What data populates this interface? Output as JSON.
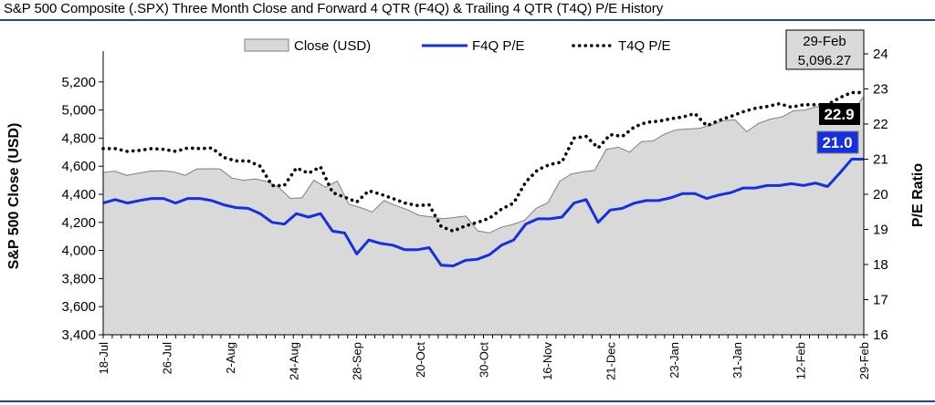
{
  "title": "S&P 500 Composite (.SPX) Three Month Close and Forward 4 QTR (F4Q) & Trailing 4 QTR (T4Q) P/E History",
  "colors": {
    "rule": "#1f3fbf",
    "area_fill": "#d9d9d9",
    "area_stroke": "#7f7f7f",
    "f4q": "#1530e0",
    "t4q": "#000000",
    "callout_close_bg": "#d9d9d9",
    "callout_t4q_bg": "#000000",
    "callout_f4q_bg": "#1530e0"
  },
  "chart_data": {
    "type": "area",
    "title": "S&P 500 Composite (.SPX) Three Month Close and Forward 4 QTR (F4Q) & Trailing 4 QTR (T4Q) P/E History",
    "xlabel": "",
    "ylabel_left": "S&P 500 Close (USD)",
    "ylabel_right": "P/E Ratio",
    "ylim_left": [
      3400,
      5400
    ],
    "ylim_right": [
      16,
      24
    ],
    "yticks_left": [
      "3,400",
      "3,600",
      "3,800",
      "4,000",
      "4,200",
      "4,400",
      "4,600",
      "4,800",
      "5,000",
      "5,200"
    ],
    "yticks_right": [
      "16",
      "17",
      "18",
      "19",
      "20",
      "21",
      "22",
      "23",
      "24"
    ],
    "x_tick_labels": [
      "18-Jul",
      "26-Jul",
      "2-Aug",
      "24-Aug",
      "28-Sep",
      "20-Oct",
      "30-Oct",
      "16-Nov",
      "21-Dec",
      "23-Jan",
      "31-Jan",
      "12-Feb",
      "29-Feb"
    ],
    "x_tick_positions": [
      0,
      7,
      14,
      21,
      28,
      35,
      42,
      49,
      56,
      63,
      70,
      77,
      84
    ],
    "grid": false,
    "legend_position": "top-center",
    "series": [
      {
        "name": "Close (USD)",
        "axis": "left",
        "style": "area",
        "values": [
          4555,
          4565,
          4535,
          4550,
          4565,
          4568,
          4560,
          4535,
          4580,
          4582,
          4580,
          4515,
          4500,
          4510,
          4490,
          4450,
          4370,
          4375,
          4500,
          4450,
          4495,
          4330,
          4305,
          4275,
          4355,
          4320,
          4290,
          4250,
          4240,
          4225,
          4235,
          4245,
          4140,
          4125,
          4165,
          4185,
          4215,
          4300,
          4340,
          4490,
          4545,
          4560,
          4570,
          4720,
          4735,
          4700,
          4775,
          4780,
          4830,
          4860,
          4865,
          4870,
          4895,
          4925,
          4930,
          4845,
          4905,
          4935,
          4950,
          4995,
          5000,
          5025,
          5005,
          5020,
          4985,
          5096
        ]
      },
      {
        "name": "F4Q P/E",
        "axis": "right",
        "style": "line",
        "values": [
          19.75,
          19.85,
          19.75,
          19.82,
          19.88,
          19.88,
          19.75,
          19.88,
          19.88,
          19.82,
          19.7,
          19.62,
          19.6,
          19.45,
          19.2,
          19.15,
          19.45,
          19.35,
          19.45,
          18.95,
          18.9,
          18.3,
          18.7,
          18.6,
          18.55,
          18.42,
          18.42,
          18.48,
          17.98,
          17.96,
          18.12,
          18.15,
          18.28,
          18.55,
          18.7,
          19.15,
          19.3,
          19.3,
          19.35,
          19.75,
          19.85,
          19.2,
          19.55,
          19.6,
          19.75,
          19.82,
          19.82,
          19.9,
          20.02,
          20.02,
          19.88,
          19.98,
          20.05,
          20.18,
          20.18,
          20.25,
          20.25,
          20.3,
          20.25,
          20.32,
          20.22,
          20.6,
          21.0,
          21.0
        ]
      },
      {
        "name": "T4Q P/E",
        "axis": "right",
        "style": "dotted",
        "values": [
          21.3,
          21.3,
          21.22,
          21.25,
          21.3,
          21.28,
          21.22,
          21.32,
          21.3,
          21.32,
          21.05,
          20.95,
          20.95,
          20.8,
          20.25,
          20.25,
          20.75,
          20.6,
          20.78,
          20.05,
          19.92,
          19.78,
          20.1,
          20.0,
          19.88,
          19.75,
          19.68,
          19.7,
          19.08,
          18.95,
          19.1,
          19.2,
          19.32,
          19.58,
          19.75,
          20.35,
          20.7,
          20.85,
          20.92,
          21.6,
          21.65,
          21.32,
          21.7,
          21.65,
          21.92,
          22.05,
          22.08,
          22.15,
          22.2,
          22.3,
          21.95,
          22.1,
          22.22,
          22.35,
          22.45,
          22.5,
          22.58,
          22.48,
          22.55,
          22.55,
          22.55,
          22.75,
          22.9,
          22.9
        ]
      }
    ],
    "callouts": {
      "close": {
        "date": "29-Feb",
        "value": "5,096.27"
      },
      "t4q": {
        "value": "22.9"
      },
      "f4q": {
        "value": "21.0"
      }
    }
  }
}
